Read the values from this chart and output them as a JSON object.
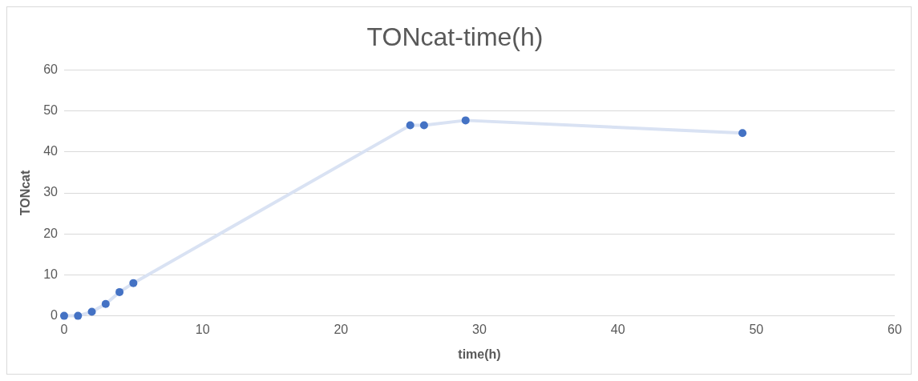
{
  "chart_data": {
    "type": "scatter",
    "title": "TONcat-time(h)",
    "xlabel": "time(h)",
    "ylabel": "TONcat",
    "x": [
      0,
      1,
      2,
      3,
      4,
      5,
      25,
      26,
      29,
      49
    ],
    "series": [
      {
        "type": "line",
        "color": "#d9e2f3",
        "marker": "none",
        "values": [
          0,
          0,
          1.0,
          2.9,
          5.8,
          8.0,
          46.5,
          46.5,
          47.7,
          44.6
        ]
      },
      {
        "type": "scatter",
        "color": "#4472c4",
        "marker": "circle",
        "values": [
          0,
          0,
          1.0,
          2.9,
          5.8,
          8.0,
          46.5,
          46.5,
          47.7,
          44.6
        ]
      }
    ],
    "xlim": [
      0,
      60
    ],
    "xticks": [
      0,
      10,
      20,
      30,
      40,
      50,
      60
    ],
    "ylim": [
      0,
      60
    ],
    "yticks": [
      0,
      10,
      20,
      30,
      40,
      50,
      60
    ],
    "grid": "y",
    "legend": false
  }
}
